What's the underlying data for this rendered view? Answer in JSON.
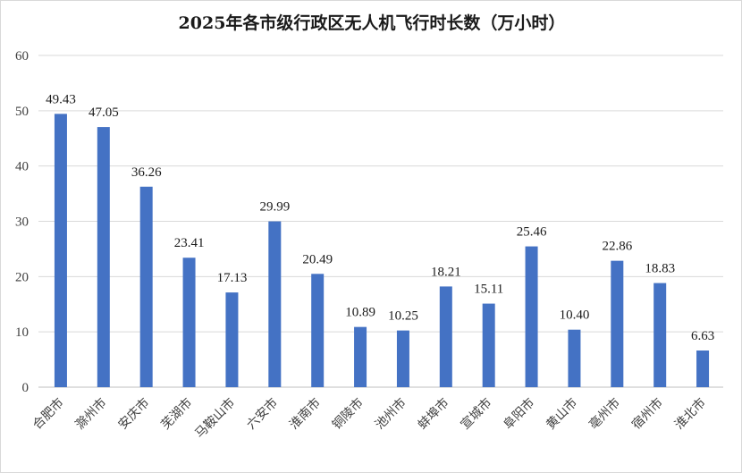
{
  "chart_data": {
    "type": "bar",
    "title": "2025年各市级行政区无人机飞行时长数（万小时）",
    "xlabel": "",
    "ylabel": "",
    "ylim": [
      0,
      60
    ],
    "yticks": [
      0,
      10,
      20,
      30,
      40,
      50,
      60
    ],
    "grid": true,
    "legend": "none",
    "categories": [
      "合肥市",
      "滁州市",
      "安庆市",
      "芜湖市",
      "马鞍山市",
      "六安市",
      "淮南市",
      "铜陵市",
      "池州市",
      "蚌埠市",
      "宣城市",
      "阜阳市",
      "黄山市",
      "亳州市",
      "宿州市",
      "淮北市"
    ],
    "values": [
      49.43,
      47.05,
      36.26,
      23.41,
      17.13,
      29.99,
      20.49,
      10.89,
      10.25,
      18.21,
      15.11,
      25.46,
      10.4,
      22.86,
      18.83,
      6.63
    ],
    "data_labels": [
      "49.43",
      "47.05",
      "36.26",
      "23.41",
      "17.13",
      "29.99",
      "20.49",
      "10.89",
      "10.25",
      "18.21",
      "15.11",
      "25.46",
      "10.40",
      "22.86",
      "18.83",
      "6.63"
    ],
    "bar_color": "#4472c4",
    "grid_color": "#d9d9d9"
  }
}
